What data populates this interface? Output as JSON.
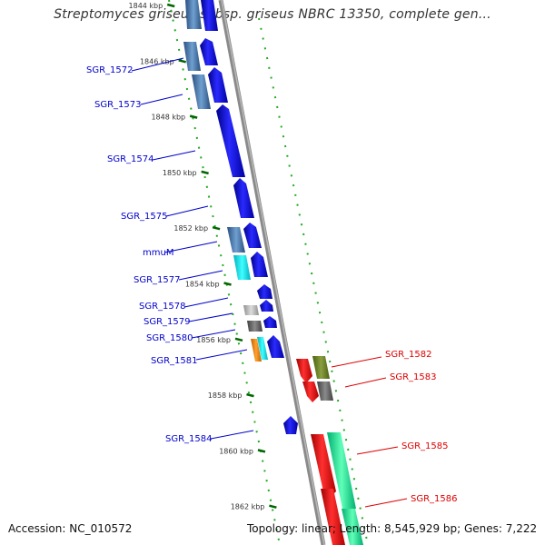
{
  "title": "Streptomyces griseus subsp. griseus NBRC 13350, complete gen...",
  "footer": {
    "accession": "Accession: NC_010572",
    "summary": "Topology: linear; Length: 8,545,929 bp; Genes: 7,222"
  },
  "colors": {
    "backbone": "#8a8a8a",
    "forward_gene": "#0000dd",
    "reverse_gene": "#ee0000",
    "label_forward": "#0000cc",
    "label_reverse": "#dd0000",
    "tick": "#006600"
  },
  "ticks": [
    {
      "label": "1844 kbp"
    },
    {
      "label": "1846 kbp"
    },
    {
      "label": "1848 kbp"
    },
    {
      "label": "1850 kbp"
    },
    {
      "label": "1852 kbp"
    },
    {
      "label": "1854 kbp"
    },
    {
      "label": "1856 kbp"
    },
    {
      "label": "1858 kbp"
    },
    {
      "label": "1860 kbp"
    },
    {
      "label": "1862 kbp"
    }
  ],
  "left_labels": [
    "SGR_1572",
    "SGR_1573",
    "SGR_1574",
    "SGR_1575",
    "mmuM",
    "SGR_1577",
    "SGR_1578",
    "SGR_1579",
    "SGR_1580",
    "SGR_1581",
    "SGR_1584"
  ],
  "right_labels": [
    "SGR_1582",
    "SGR_1583",
    "SGR_1585",
    "SGR_1586"
  ]
}
